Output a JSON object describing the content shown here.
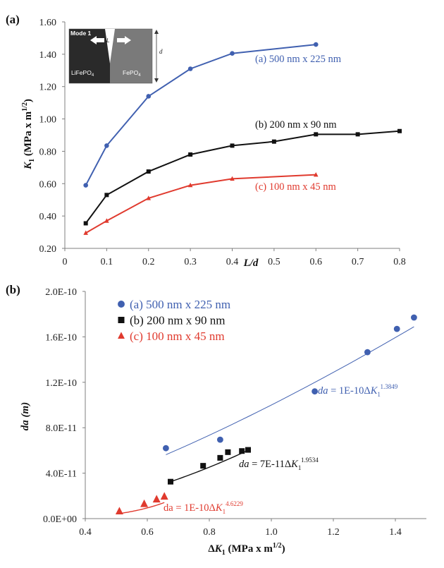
{
  "colors": {
    "blue": "#4060b0",
    "black": "#111111",
    "red": "#e03a2e",
    "axis": "#7f7f7f"
  },
  "chart_data": [
    {
      "type": "line",
      "panel_label": "(a)",
      "xlabel": "L/d",
      "ylabel": {
        "main": "K",
        "sub": "1",
        "units": " (MPa x m",
        "sup": "1/2",
        "close": ")"
      },
      "xlim": [
        0,
        0.8
      ],
      "ylim": [
        0.2,
        1.6
      ],
      "x_ticks": [
        0,
        0.1,
        0.2,
        0.3,
        0.4,
        0.5,
        0.6,
        0.7,
        0.8
      ],
      "x_tick_labels": [
        "0",
        "0.1",
        "0.2",
        "0.3",
        "0.4",
        "0.5",
        "0.6",
        "0.7",
        "0.8"
      ],
      "y_ticks": [
        0.2,
        0.4,
        0.6,
        0.8,
        1.0,
        1.2,
        1.4,
        1.6
      ],
      "y_tick_labels": [
        "0.20",
        "0.40",
        "0.60",
        "0.80",
        "1.00",
        "1.20",
        "1.40",
        "1.60"
      ],
      "series": [
        {
          "name": "(a) 500 nm x 225 nm",
          "color": "#4060b0",
          "marker": "circle",
          "x": [
            0.05,
            0.1,
            0.2,
            0.3,
            0.4,
            0.6
          ],
          "y": [
            0.59,
            0.835,
            1.14,
            1.31,
            1.405,
            1.46
          ]
        },
        {
          "name": "(b) 200 nm x 90 nm",
          "color": "#111111",
          "marker": "square",
          "x": [
            0.05,
            0.1,
            0.2,
            0.3,
            0.4,
            0.5,
            0.6,
            0.7,
            0.8
          ],
          "y": [
            0.355,
            0.53,
            0.675,
            0.78,
            0.835,
            0.86,
            0.905,
            0.905,
            0.925
          ]
        },
        {
          "name": "(c) 100 nm x 45 nm",
          "color": "#e03a2e",
          "marker": "triangle",
          "x": [
            0.05,
            0.1,
            0.2,
            0.3,
            0.4,
            0.6
          ],
          "y": [
            0.295,
            0.37,
            0.51,
            0.59,
            0.63,
            0.655
          ]
        }
      ],
      "inset": {
        "title": "Mode 1",
        "left_material": "LiFePO",
        "left_sub": "4",
        "right_material": "FePO",
        "right_sub": "4",
        "crack_label": "L",
        "depth_label": "d"
      }
    },
    {
      "type": "scatter",
      "panel_label": "(b)",
      "xlabel": {
        "prefix": "Δ",
        "main": "K",
        "sub": "1",
        "units": " (MPa x m",
        "sup": "1/2",
        "close": ")"
      },
      "ylabel": "da (m)",
      "xlim": [
        0.4,
        1.5
      ],
      "ylim": [
        0,
        2e-10
      ],
      "x_ticks": [
        0.4,
        0.6,
        0.8,
        1.0,
        1.2,
        1.4
      ],
      "x_tick_labels": [
        "0.4",
        "0.6",
        "0.8",
        "1.0",
        "1.2",
        "1.4"
      ],
      "y_ticks": [
        0,
        4e-11,
        8e-11,
        1.2e-10,
        1.6e-10,
        2e-10
      ],
      "y_tick_labels": [
        "0.0E+00",
        "4.0E-11",
        "8.0E-11",
        "1.2E-10",
        "1.6E-10",
        "2.0E-10"
      ],
      "series": [
        {
          "name": "(a) 500 nm x 225 nm",
          "color": "#4060b0",
          "marker": "circle",
          "x": [
            0.66,
            0.835,
            1.14,
            1.31,
            1.405,
            1.46
          ],
          "y": [
            6.2e-11,
            6.95e-11,
            1.12e-10,
            1.465e-10,
            1.67e-10,
            1.77e-10
          ],
          "fit": {
            "coef": 1e-10,
            "exp": 1.3849,
            "xrange": [
              0.66,
              1.46
            ],
            "text_prefix": "da",
            "text_mid": " = 1E-10Δ",
            "text_k": "K",
            "text_sub": "1",
            "text_sup": "1.3849"
          }
        },
        {
          "name": "(b) 200 nm x 90 nm",
          "color": "#111111",
          "marker": "square",
          "x": [
            0.675,
            0.78,
            0.835,
            0.86,
            0.905,
            0.925
          ],
          "y": [
            3.25e-11,
            4.65e-11,
            5.35e-11,
            5.85e-11,
            5.95e-11,
            6.05e-11
          ],
          "fit": {
            "coef": 7e-11,
            "exp": 1.9534,
            "xrange": [
              0.675,
              0.925
            ],
            "text_prefix": "da",
            "text_mid": " = 7E-11Δ",
            "text_k": "K",
            "text_sub": "1",
            "text_sup": "1.9534"
          }
        },
        {
          "name": "(c) 100 nm x 45 nm",
          "color": "#e03a2e",
          "marker": "triangle",
          "x": [
            0.51,
            0.59,
            0.63,
            0.655
          ],
          "y": [
            6.5e-12,
            1.3e-11,
            1.7e-11,
            1.95e-11
          ],
          "fit": {
            "coef": 1e-10,
            "exp": 4.6229,
            "xrange": [
              0.51,
              0.655
            ],
            "text_prefix": "da",
            "text_mid": " = 1E-10Δ",
            "text_k": "K",
            "text_sub": "1",
            "text_sup": "4.6229"
          }
        }
      ],
      "legend": [
        {
          "text": "(a) 500 nm x 225 nm",
          "color": "#4060b0",
          "marker": "circle"
        },
        {
          "text": "(b) 200 nm x 90 nm",
          "color": "#111111",
          "marker": "square"
        },
        {
          "text": "(c) 100 nm x 45 nm",
          "color": "#e03a2e",
          "marker": "triangle"
        }
      ]
    }
  ]
}
